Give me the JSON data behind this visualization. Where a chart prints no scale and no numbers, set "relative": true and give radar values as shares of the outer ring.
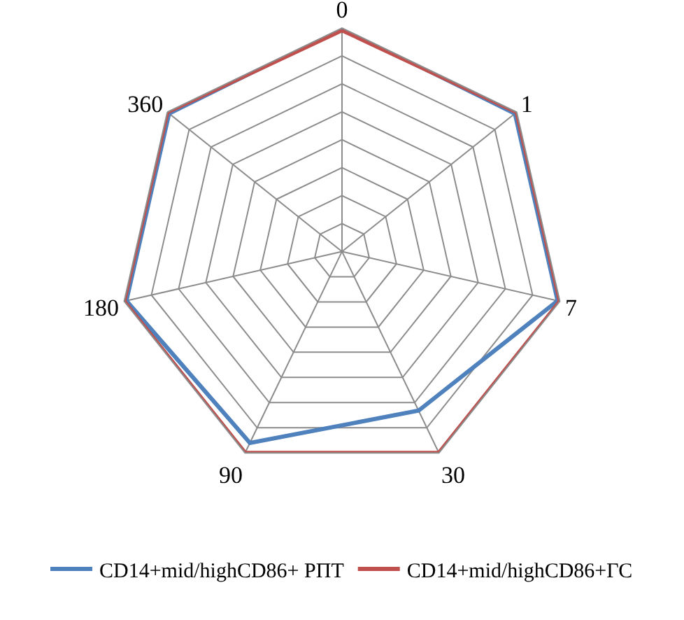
{
  "chart_data": {
    "type": "radar",
    "relative": true,
    "categories": [
      "0",
      "1",
      "7",
      "30",
      "90",
      "180",
      "360"
    ],
    "series": [
      {
        "name": "CD14+mid/highCD86+ РПТ",
        "color": "#4f81bd",
        "values": [
          1,
          0.99,
          0.99,
          0.79,
          0.95,
          0.99,
          0.99
        ]
      },
      {
        "name": "CD14+mid/highCD86+ГС",
        "color": "#c0504d",
        "values": [
          0.99,
          1,
          1,
          1,
          1,
          1,
          1
        ]
      }
    ],
    "legend": "bottom",
    "grid": true,
    "marker": "none"
  }
}
